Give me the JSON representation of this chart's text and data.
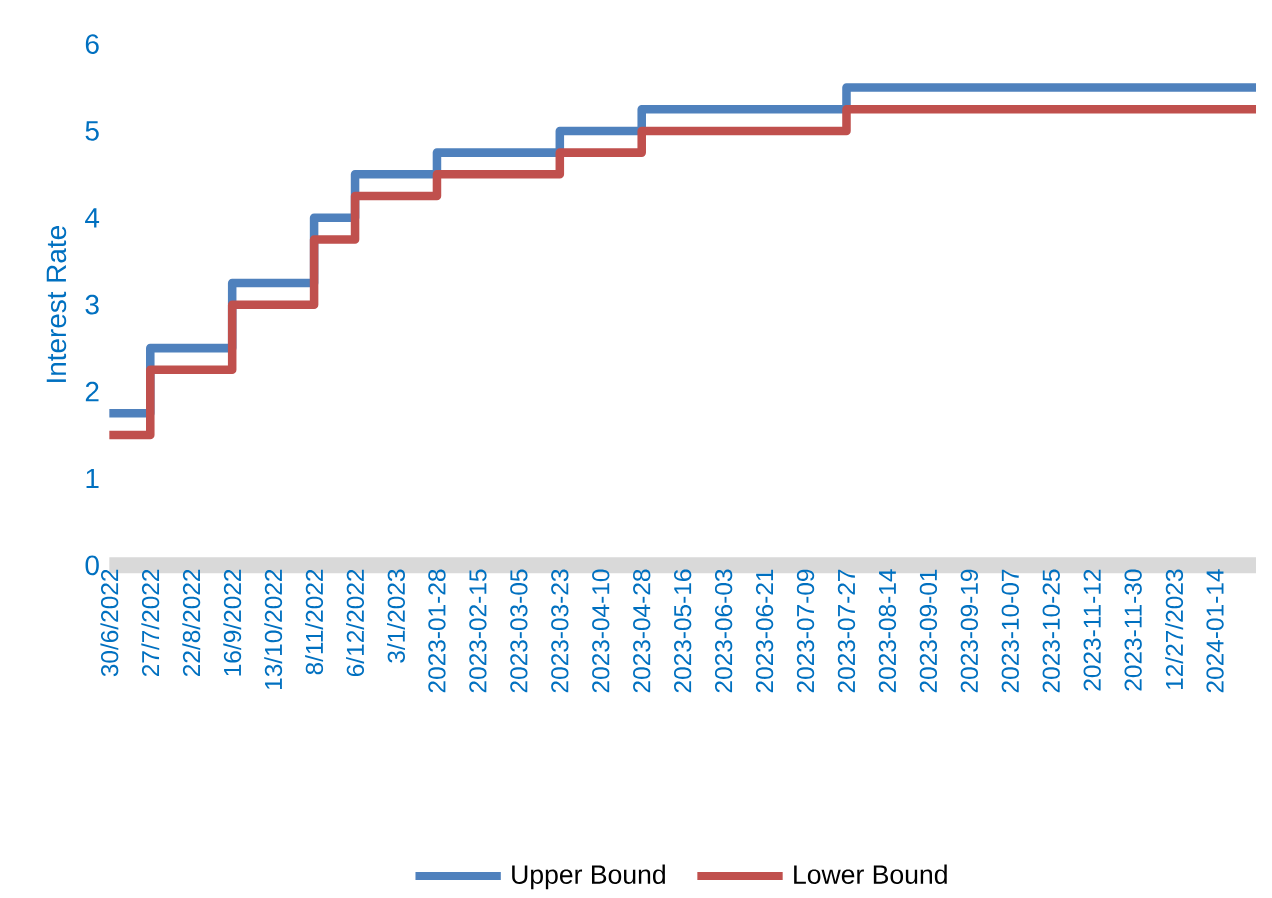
{
  "chart_data": {
    "type": "step",
    "ylabel": "Interest Rate",
    "categories": [
      "30/6/2022",
      "27/7/2022",
      "22/8/2022",
      "16/9/2022",
      "13/10/2022",
      "8/11/2022",
      "6/12/2022",
      "3/1/2023",
      "2023-01-28",
      "2023-02-15",
      "2023-03-05",
      "2023-03-23",
      "2023-04-10",
      "2023-04-28",
      "2023-05-16",
      "2023-06-03",
      "2023-06-21",
      "2023-07-09",
      "2023-07-27",
      "2023-08-14",
      "2023-09-01",
      "2023-09-19",
      "2023-10-07",
      "2023-10-25",
      "2023-11-12",
      "2023-11-30",
      "12/27/2023",
      "2024-01-14",
      null
    ],
    "series": [
      {
        "name": "Upper Bound",
        "color": "#4f81bd",
        "values": [
          1.75,
          2.5,
          2.5,
          3.25,
          3.25,
          4.0,
          4.5,
          4.5,
          4.75,
          4.75,
          4.75,
          5.0,
          5.0,
          5.25,
          5.25,
          5.25,
          5.25,
          5.25,
          5.5,
          5.5,
          5.5,
          5.5,
          5.5,
          5.5,
          5.5,
          5.5,
          5.5,
          5.5,
          5.5
        ]
      },
      {
        "name": "Lower Bound",
        "color": "#c0504d",
        "values": [
          1.5,
          2.25,
          2.25,
          3.0,
          3.0,
          3.75,
          4.25,
          4.25,
          4.5,
          4.5,
          4.5,
          4.75,
          4.75,
          5.0,
          5.0,
          5.0,
          5.0,
          5.0,
          5.25,
          5.25,
          5.25,
          5.25,
          5.25,
          5.25,
          5.25,
          5.25,
          5.25,
          5.25,
          5.25
        ]
      }
    ],
    "ylim": [
      0,
      6
    ],
    "yticks": [
      0,
      1,
      2,
      3,
      4,
      5,
      6
    ],
    "grid": false,
    "legend": "bottom",
    "marker": "none",
    "line_style": "solid"
  }
}
